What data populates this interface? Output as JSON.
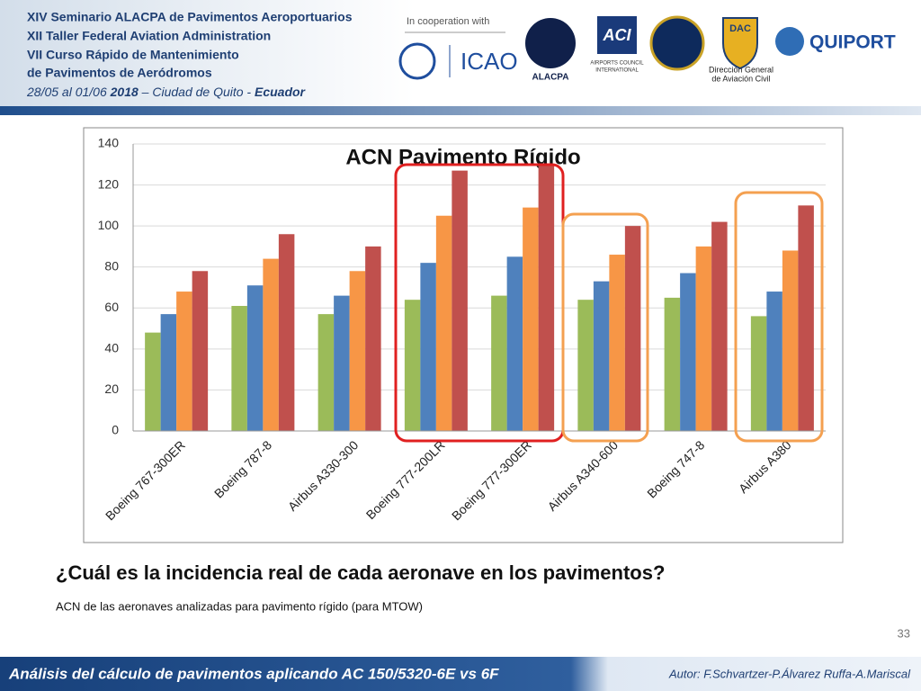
{
  "header": {
    "lines": [
      "XIV Seminario ALACPA de Pavimentos Aeroportuarios",
      "XII Taller Federal Aviation Administration",
      "VII Curso Rápido de Mantenimiento",
      "de Pavimentos de Aeródromos"
    ],
    "date_parts": [
      "28/05 al 01/06 ",
      "2018",
      " – Ciudad de Quito - ",
      "Ecuador"
    ]
  },
  "logos": {
    "cooperation": "In cooperation with",
    "icao": "ICAO",
    "alacpa": "ALACPA",
    "aci": "ACI",
    "aci_lines": [
      "AIRPORTS COUNCIL",
      "INTERNATIONAL"
    ],
    "dac": "DAC",
    "dac_lines": [
      "Dirección General",
      "de Aviación Civil"
    ],
    "quiport": "QUIPORT"
  },
  "chart_data": {
    "type": "bar",
    "title": "ACN Pavimento Rígido",
    "categories": [
      "Boeing 767-300ER",
      "Boeing 787-8",
      "Airbus A330-300",
      "Boeing 777-200LR",
      "Boeing 777-300ER",
      "Airbus A340-600",
      "Boeing 747-8",
      "Airbus A380"
    ],
    "series": [
      {
        "color": "#9bbb59",
        "values": [
          48,
          61,
          57,
          64,
          66,
          64,
          65,
          56
        ]
      },
      {
        "color": "#4f81bd",
        "values": [
          57,
          71,
          66,
          82,
          85,
          73,
          77,
          68
        ]
      },
      {
        "color": "#f79646",
        "values": [
          68,
          84,
          78,
          105,
          109,
          86,
          90,
          88
        ]
      },
      {
        "color": "#c0504d",
        "values": [
          78,
          96,
          90,
          127,
          130,
          100,
          102,
          110
        ]
      }
    ],
    "ylim": [
      0,
      140
    ],
    "yticks": [
      0,
      20,
      40,
      60,
      80,
      100,
      120,
      140
    ],
    "grid": true
  },
  "slide": {
    "question": "¿Cuál es la incidencia real de cada aeronave en los pavimentos?",
    "caption": "ACN de las aeronaves analizadas para pavimento rígido (para MTOW)",
    "page": "33",
    "footer": "Análisis del cálculo de pavimentos aplicando AC 150/5320-6E vs 6F",
    "author": "Autor: F.Schvartzer-P.Álvarez Ruffa-A.Mariscal"
  }
}
